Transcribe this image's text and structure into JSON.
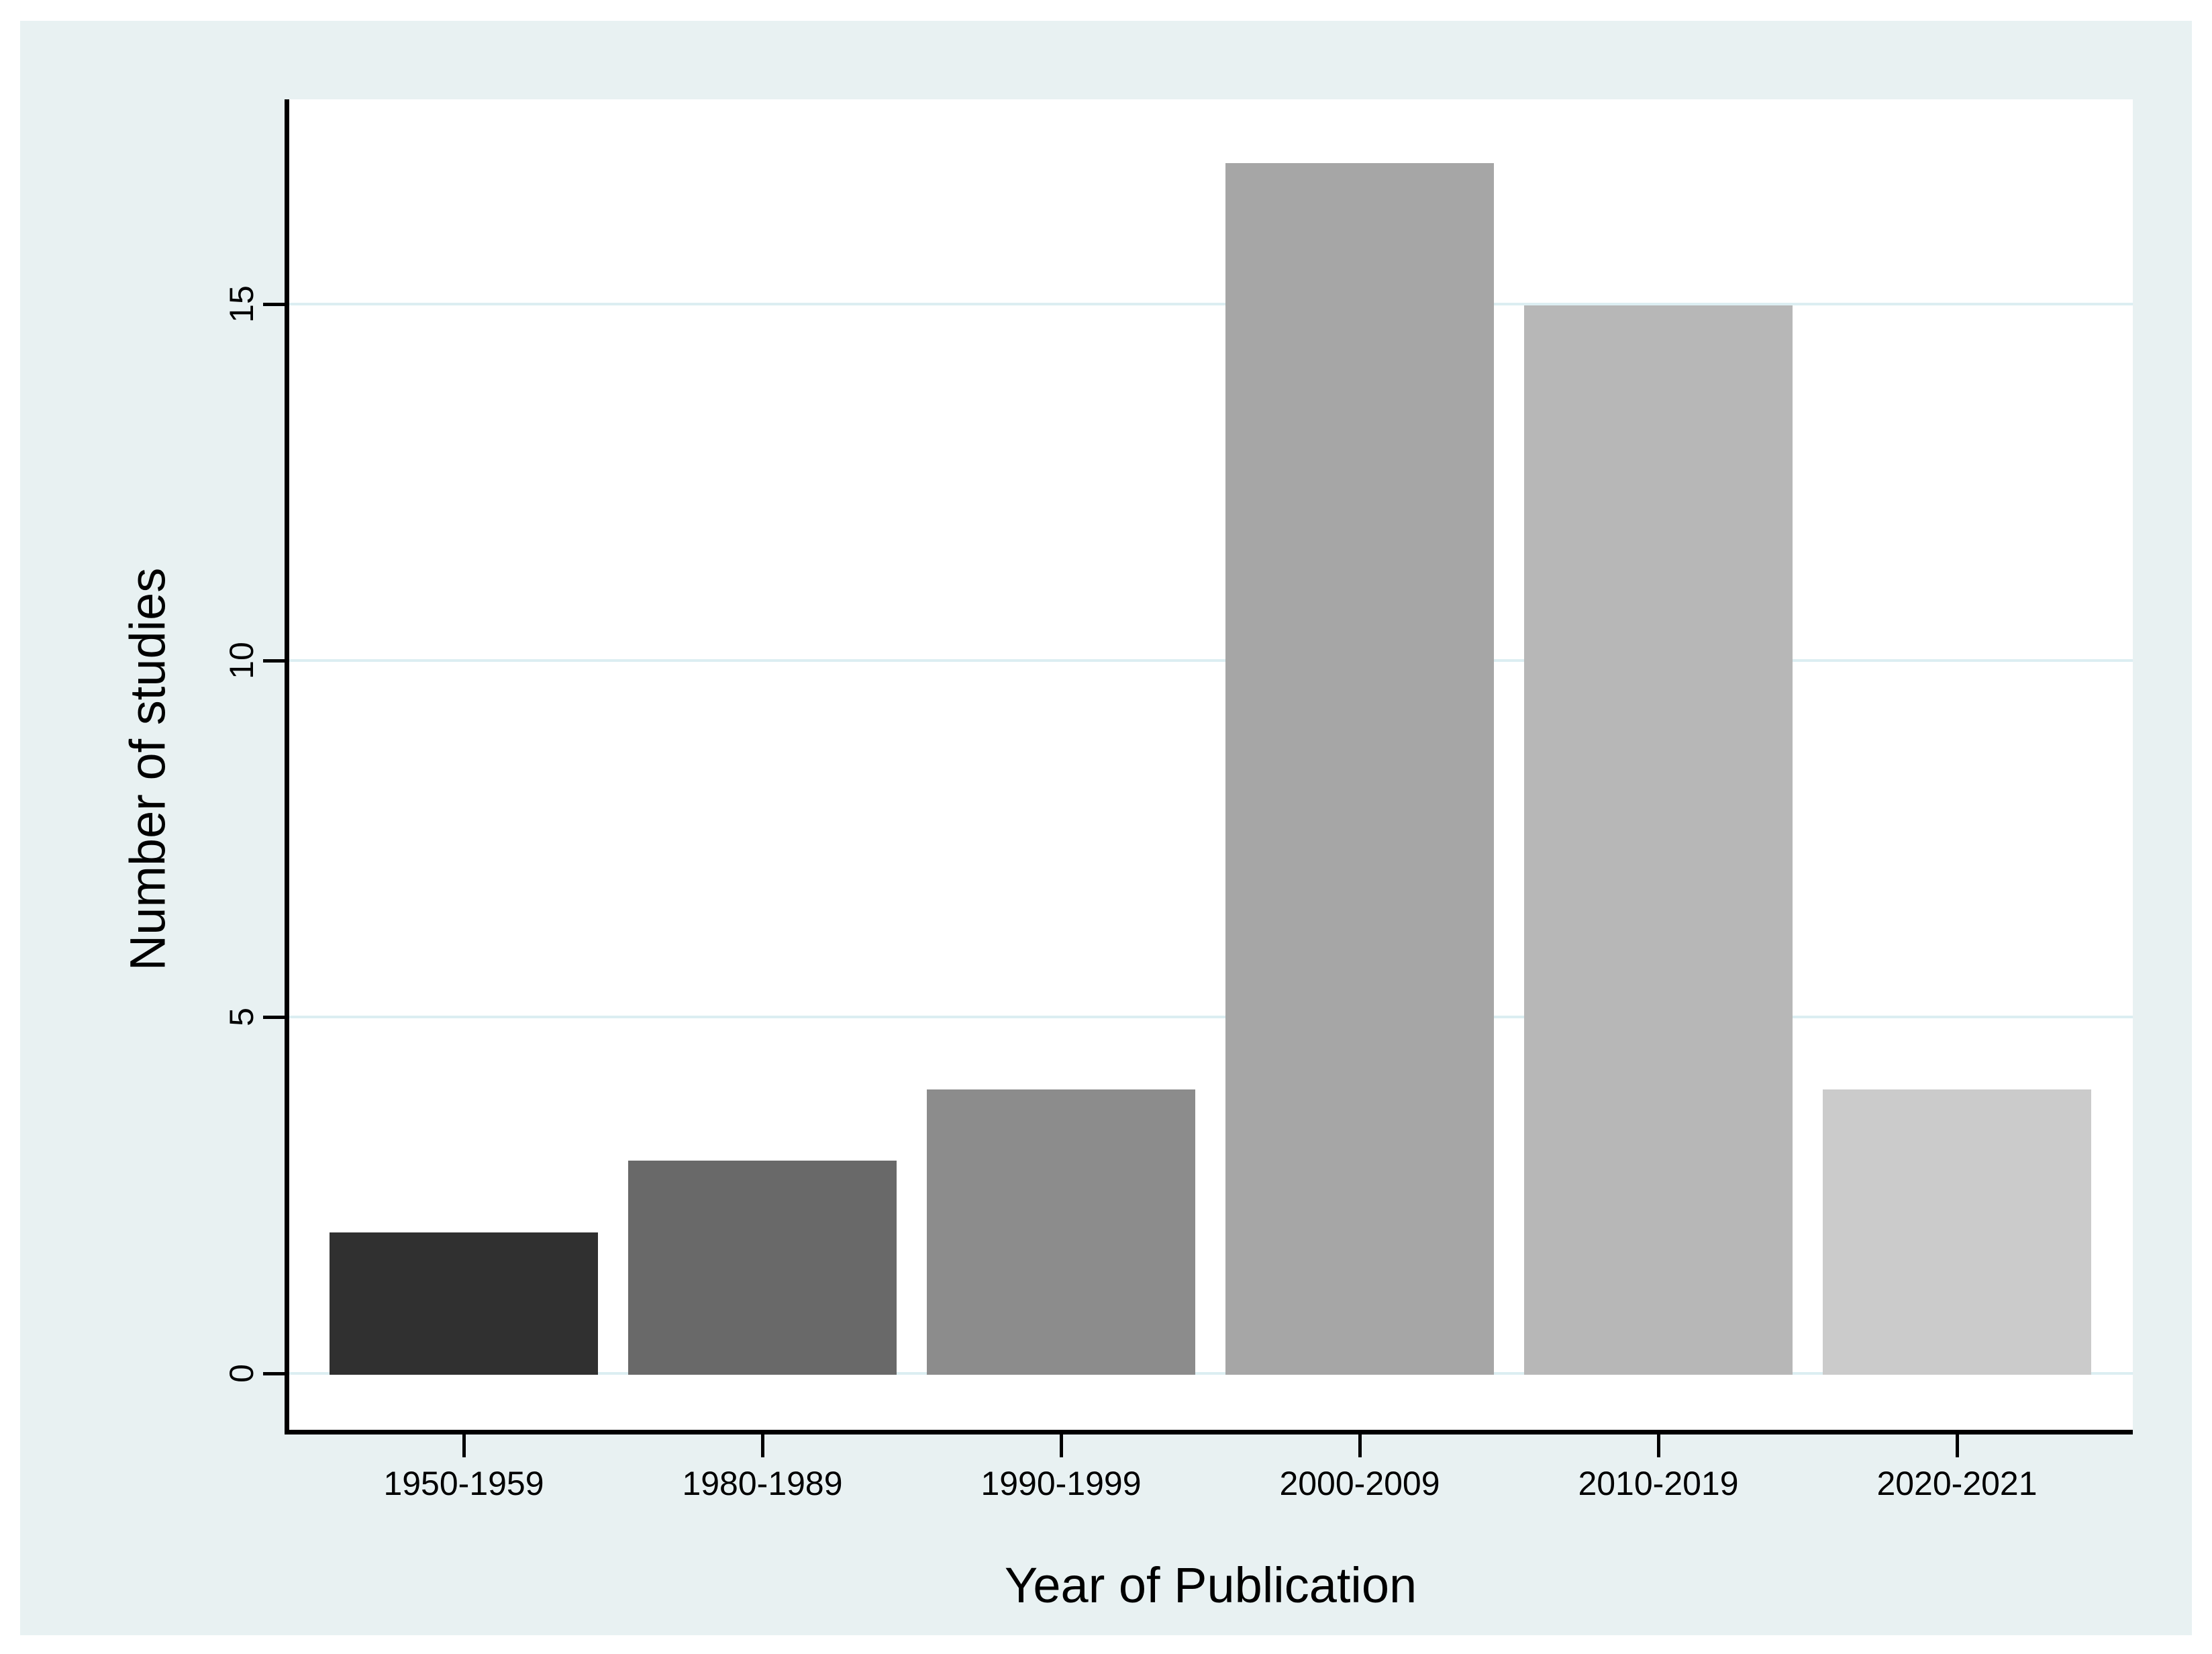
{
  "figure": {
    "background": "#ffffff",
    "panel_background": "#e8f1f2",
    "plot_background": "#ffffff",
    "axis_color": "#000000",
    "text_color": "#000000"
  },
  "chart_data": {
    "type": "bar",
    "title": "",
    "xlabel": "Year of Publication",
    "ylabel": "Number of studies",
    "categories": [
      "1950-1959",
      "1980-1989",
      "1990-1999",
      "2000-2009",
      "2010-2019",
      "2020-2021"
    ],
    "values": [
      2,
      3,
      4,
      17,
      15,
      4
    ],
    "bar_colors": [
      "#303030",
      "#696969",
      "#8c8c8c",
      "#a6a6a6",
      "#b7b7b7",
      "#cbcbcb"
    ],
    "y_ticks": [
      0,
      5,
      10,
      15
    ],
    "y_tick_labels": [
      "0",
      "5",
      "10",
      "15"
    ],
    "ylim": [
      0,
      17.9
    ],
    "grid": true,
    "gridline_color": "#dceef2",
    "legend_position": "none"
  }
}
